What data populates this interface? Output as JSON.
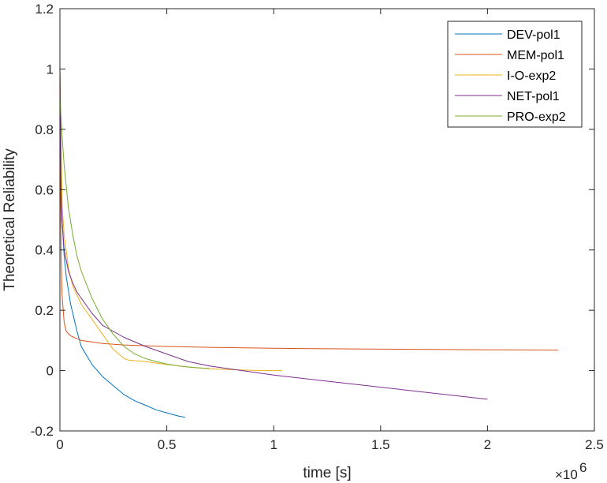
{
  "chart_data": {
    "type": "line",
    "title": "",
    "xlabel": "time [s]",
    "ylabel": "Theoretical Reliability",
    "xlim": [
      0,
      2.5
    ],
    "ylim": [
      -0.2,
      1.2
    ],
    "x_ticks": [
      "0",
      "0.5",
      "1",
      "1.5",
      "2",
      "2.5"
    ],
    "y_ticks": [
      "-0.2",
      "0",
      "0.2",
      "0.4",
      "0.6",
      "0.8",
      "1",
      "1.2"
    ],
    "x_multiplier": "×10",
    "x_exponent": "6",
    "grid": false,
    "legend_position": "top-right",
    "series": [
      {
        "name": "DEV-pol1",
        "color": "#0072BD",
        "x": [
          0,
          0.005,
          0.01,
          0.02,
          0.03,
          0.05,
          0.08,
          0.1,
          0.15,
          0.2,
          0.25,
          0.3,
          0.35,
          0.4,
          0.45,
          0.5,
          0.55,
          0.585
        ],
        "y": [
          1.0,
          0.65,
          0.5,
          0.38,
          0.31,
          0.22,
          0.13,
          0.08,
          0.02,
          -0.02,
          -0.05,
          -0.08,
          -0.1,
          -0.115,
          -0.13,
          -0.14,
          -0.15,
          -0.155
        ]
      },
      {
        "name": "MEM-pol1",
        "color": "#D95319",
        "x": [
          0,
          0.005,
          0.01,
          0.02,
          0.03,
          0.05,
          0.1,
          0.2,
          0.3,
          0.5,
          0.7,
          1.0,
          1.5,
          2.0,
          2.33
        ],
        "y": [
          1.0,
          0.4,
          0.25,
          0.16,
          0.13,
          0.115,
          0.1,
          0.09,
          0.085,
          0.08,
          0.077,
          0.074,
          0.071,
          0.069,
          0.068
        ]
      },
      {
        "name": "I-O-exp2",
        "color": "#EDB120",
        "x": [
          0,
          0.01,
          0.02,
          0.04,
          0.06,
          0.08,
          0.1,
          0.15,
          0.2,
          0.25,
          0.3,
          0.32,
          0.4,
          0.5,
          0.6,
          0.7,
          0.8,
          0.9,
          1.0,
          1.04
        ],
        "y": [
          1.0,
          0.55,
          0.45,
          0.34,
          0.28,
          0.25,
          0.22,
          0.17,
          0.12,
          0.07,
          0.04,
          0.035,
          0.03,
          0.02,
          0.012,
          0.006,
          0.003,
          0.001,
          0.0,
          0.0
        ]
      },
      {
        "name": "NET-pol1",
        "color": "#7E2F8E",
        "x": [
          0,
          0.005,
          0.01,
          0.02,
          0.04,
          0.06,
          0.08,
          0.1,
          0.15,
          0.2,
          0.3,
          0.4,
          0.5,
          0.6,
          0.7,
          1.0,
          1.5,
          2.0
        ],
        "y": [
          1.0,
          0.6,
          0.5,
          0.4,
          0.33,
          0.29,
          0.26,
          0.24,
          0.19,
          0.15,
          0.11,
          0.08,
          0.055,
          0.03,
          0.015,
          -0.015,
          -0.055,
          -0.095
        ]
      },
      {
        "name": "PRO-exp2",
        "color": "#77AC30",
        "x": [
          0,
          0.005,
          0.01,
          0.02,
          0.04,
          0.06,
          0.08,
          0.1,
          0.15,
          0.2,
          0.25,
          0.3,
          0.35,
          0.4,
          0.45,
          0.5,
          0.55,
          0.6,
          0.65,
          0.7
        ],
        "y": [
          0.91,
          0.84,
          0.78,
          0.68,
          0.54,
          0.45,
          0.38,
          0.33,
          0.24,
          0.17,
          0.12,
          0.08,
          0.055,
          0.04,
          0.03,
          0.022,
          0.016,
          0.012,
          0.009,
          0.007
        ]
      }
    ]
  }
}
